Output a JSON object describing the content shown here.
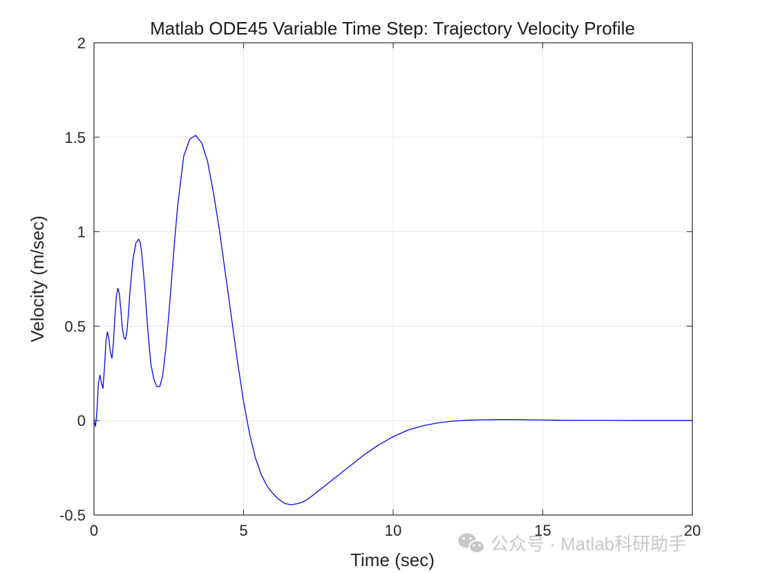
{
  "chart_data": {
    "type": "line",
    "title": "Matlab ODE45 Variable Time Step:  Trajectory Velocity Profile",
    "xlabel": "Time (sec)",
    "ylabel": "Velocity (m/sec)",
    "xlim": [
      0,
      20
    ],
    "ylim": [
      -0.5,
      2
    ],
    "x_ticks": [
      0,
      5,
      10,
      15,
      20
    ],
    "x_tick_labels": [
      "0",
      "5",
      "10",
      "15",
      "20"
    ],
    "y_ticks": [
      -0.5,
      0,
      0.5,
      1,
      1.5,
      2
    ],
    "y_tick_labels": [
      "-0.5",
      "0",
      "0.5",
      "1",
      "1.5",
      "2"
    ],
    "grid": true,
    "series": [
      {
        "color": "#0000ee",
        "x": [
          0,
          0.05,
          0.1,
          0.15,
          0.2,
          0.25,
          0.3,
          0.35,
          0.4,
          0.45,
          0.5,
          0.55,
          0.6,
          0.65,
          0.7,
          0.75,
          0.8,
          0.85,
          0.9,
          0.95,
          1.0,
          1.05,
          1.1,
          1.15,
          1.2,
          1.3,
          1.4,
          1.5,
          1.55,
          1.6,
          1.7,
          1.8,
          1.9,
          2.0,
          2.1,
          2.2,
          2.3,
          2.4,
          2.5,
          2.6,
          2.7,
          2.8,
          3.0,
          3.2,
          3.4,
          3.6,
          3.8,
          4.0,
          4.2,
          4.4,
          4.6,
          4.8,
          5.0,
          5.2,
          5.4,
          5.6,
          5.8,
          6.0,
          6.2,
          6.4,
          6.6,
          6.8,
          7.0,
          7.2,
          7.4,
          7.6,
          7.8,
          8.0,
          8.2,
          8.4,
          8.6,
          8.8,
          9.0,
          9.5,
          10.0,
          10.5,
          11.0,
          11.5,
          12.0,
          12.5,
          13.0,
          13.5,
          14.0,
          14.5,
          15.0,
          15.5,
          16.0,
          17.0,
          18.0,
          19.0,
          20.0
        ],
        "y": [
          0,
          -0.03,
          0.05,
          0.2,
          0.24,
          0.2,
          0.17,
          0.28,
          0.42,
          0.47,
          0.43,
          0.36,
          0.33,
          0.41,
          0.55,
          0.66,
          0.7,
          0.67,
          0.58,
          0.49,
          0.44,
          0.43,
          0.47,
          0.56,
          0.68,
          0.85,
          0.94,
          0.96,
          0.94,
          0.88,
          0.7,
          0.48,
          0.3,
          0.22,
          0.18,
          0.18,
          0.24,
          0.38,
          0.56,
          0.76,
          0.96,
          1.14,
          1.4,
          1.49,
          1.51,
          1.47,
          1.37,
          1.2,
          1.0,
          0.77,
          0.54,
          0.31,
          0.1,
          -0.07,
          -0.2,
          -0.29,
          -0.35,
          -0.39,
          -0.42,
          -0.44,
          -0.445,
          -0.44,
          -0.43,
          -0.41,
          -0.385,
          -0.36,
          -0.335,
          -0.31,
          -0.285,
          -0.26,
          -0.235,
          -0.21,
          -0.185,
          -0.13,
          -0.085,
          -0.05,
          -0.027,
          -0.012,
          -0.003,
          0.002,
          0.004,
          0.005,
          0.005,
          0.004,
          0.003,
          0.002,
          0.001,
          0.001,
          0.0,
          0.0,
          0.0
        ]
      }
    ]
  },
  "watermark": {
    "text": "公众号 · Matlab科研助手",
    "icon": "wechat-icon"
  }
}
